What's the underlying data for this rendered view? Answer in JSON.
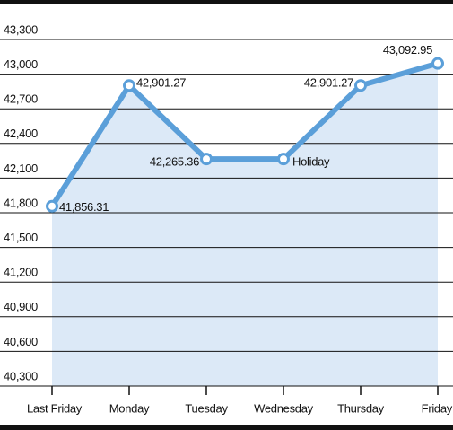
{
  "chart_data": {
    "type": "line",
    "categories": [
      "Last Friday",
      "Monday",
      "Tuesday",
      "Wednesday",
      "Thursday",
      "Friday"
    ],
    "values": [
      41856.31,
      42901.27,
      42265.36,
      42265.36,
      42901.27,
      43092.95
    ],
    "value_labels": [
      "41,856.31",
      "42,901.27",
      "42,265.36",
      null,
      "42,901.27",
      "43,092.95"
    ],
    "annotation": "Holiday",
    "color": "#5b9fd9",
    "fill": "#dce9f7",
    "ylim": [
      40300,
      43300
    ],
    "yticks": [
      {
        "value": 40300,
        "label": "40,300"
      },
      {
        "value": 40600,
        "label": "40,600"
      },
      {
        "value": 40900,
        "label": "40,900"
      },
      {
        "value": 41200,
        "label": "41,200"
      },
      {
        "value": 41500,
        "label": "41,500"
      },
      {
        "value": 41800,
        "label": "41,800"
      },
      {
        "value": 42100,
        "label": "42,100"
      },
      {
        "value": 42400,
        "label": "42,400"
      },
      {
        "value": 42700,
        "label": "42,700"
      },
      {
        "value": 43000,
        "label": "43,000"
      },
      {
        "value": 43300,
        "label": "43,300"
      }
    ],
    "grid": true
  }
}
